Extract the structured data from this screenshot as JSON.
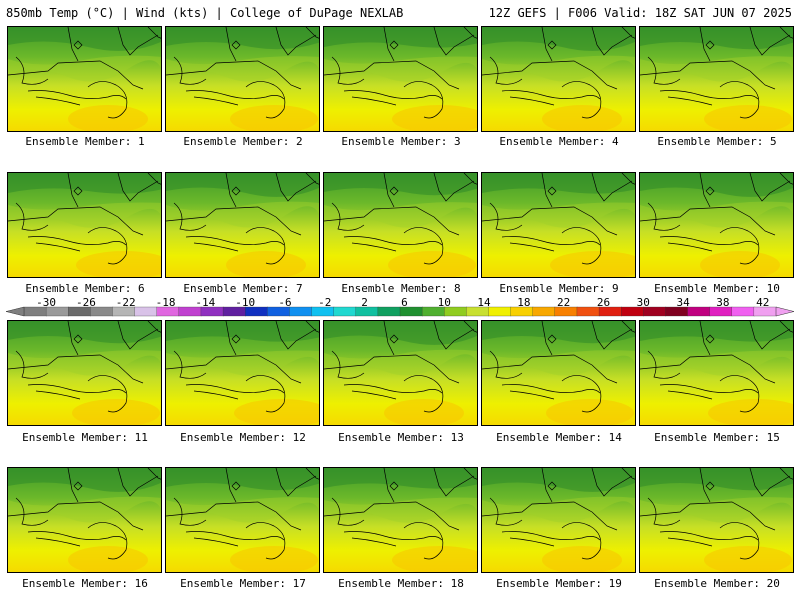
{
  "header": {
    "left": "850mb Temp (°C) | Wind (kts) | College of DuPage NEXLAB",
    "right": "12Z GEFS | F006 Valid: 18Z SAT JUN 07 2025"
  },
  "caption_prefix": "Ensemble Member:",
  "members": [
    1,
    2,
    3,
    4,
    5,
    6,
    7,
    8,
    9,
    10,
    11,
    12,
    13,
    14,
    15,
    16,
    17,
    18,
    19,
    20
  ],
  "colorbar": {
    "labels": [
      "-30",
      "-26",
      "-22",
      "-18",
      "-14",
      "-10",
      "-6",
      "-2",
      "2",
      "6",
      "10",
      "14",
      "18",
      "22",
      "26",
      "30",
      "34",
      "38",
      "42"
    ],
    "colors": [
      "#7f7f7f",
      "#9a9a9a",
      "#6b6b6b",
      "#8a8a8a",
      "#b5b5b5",
      "#d9c2e8",
      "#e066e0",
      "#c040d0",
      "#9030c0",
      "#6020a0",
      "#1030c0",
      "#1060e0",
      "#1090f0",
      "#10c0f0",
      "#20d8d0",
      "#10c0a0",
      "#10a060",
      "#209030",
      "#50b030",
      "#90cc20",
      "#c8e030",
      "#f0f000",
      "#f8d000",
      "#f8a800",
      "#f88000",
      "#f05010",
      "#e02010",
      "#c00010",
      "#a00020",
      "#800020",
      "#c00080",
      "#e020c0",
      "#f060f0",
      "#f0a0f0"
    ]
  }
}
